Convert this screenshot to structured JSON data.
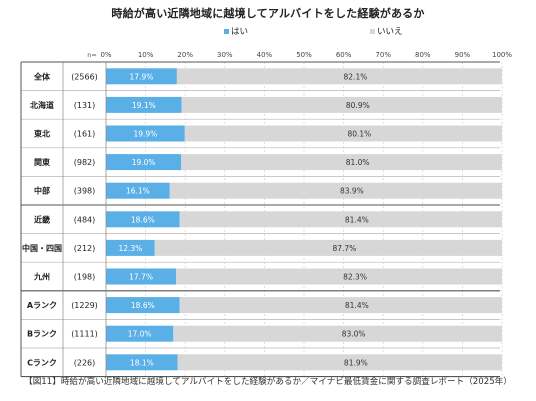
{
  "chart_data": {
    "type": "bar",
    "stacked": true,
    "orientation": "horizontal",
    "title": "時給が高い近隣地域に越境してアルバイトをした経験があるか",
    "n_label": "n=",
    "categories": [
      "全体",
      "北海道",
      "東北",
      "関東",
      "中部",
      "近畿",
      "中国・四国",
      "九州",
      "Aランク",
      "Bランク",
      "Cランク"
    ],
    "n_values": [
      "(2566)",
      "(131)",
      "(161)",
      "(982)",
      "(398)",
      "(484)",
      "(212)",
      "(198)",
      "(1229)",
      "(1111)",
      "(226)"
    ],
    "series": [
      {
        "name": "はい",
        "color": "#5aafe6",
        "values": [
          17.9,
          19.1,
          19.9,
          19.0,
          16.1,
          18.6,
          12.3,
          17.7,
          18.6,
          17.0,
          18.1
        ],
        "labels": [
          "17.9%",
          "19.1%",
          "19.9%",
          "19.0%",
          "16.1%",
          "18.6%",
          "12.3%",
          "17.7%",
          "18.6%",
          "17.0%",
          "18.1%"
        ]
      },
      {
        "name": "いいえ",
        "color": "#d7d7d7",
        "values": [
          82.1,
          80.9,
          80.1,
          81.0,
          83.9,
          81.4,
          87.7,
          82.3,
          81.4,
          83.0,
          81.9
        ],
        "labels": [
          "82.1%",
          "80.9%",
          "80.1%",
          "81.0%",
          "83.9%",
          "81.4%",
          "87.7%",
          "82.3%",
          "81.4%",
          "83.0%",
          "81.9%"
        ]
      }
    ],
    "xlim": [
      0,
      100
    ],
    "ticks": [
      0,
      10,
      20,
      30,
      40,
      50,
      60,
      70,
      80,
      90,
      100
    ],
    "tick_labels": [
      "0%",
      "10%",
      "20%",
      "30%",
      "40%",
      "50%",
      "60%",
      "70%",
      "80%",
      "90%",
      "100%"
    ],
    "legend_position": "top",
    "grid": true
  },
  "caption": "【図11】時給が高い近隣地域に越境してアルバイトをした経験があるか／マイナビ最低賃金に関する調査レポート（2025年）"
}
